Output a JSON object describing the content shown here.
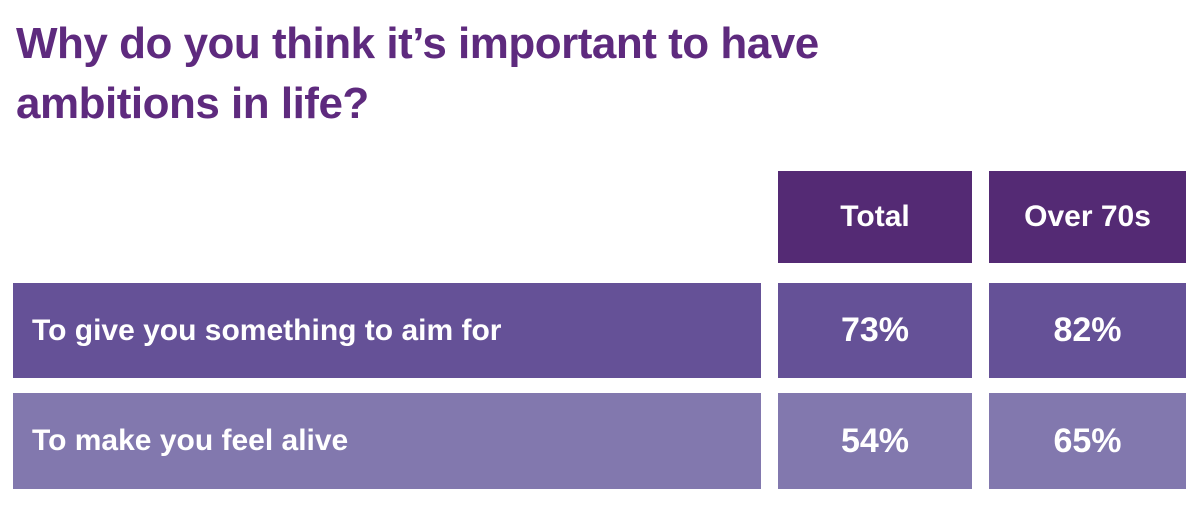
{
  "title": {
    "full": "Why do you think it’s important to have ambitions in life?",
    "lines": [
      "Why do you think it’s important to have",
      "ambitions in life?"
    ]
  },
  "table": {
    "columns": [
      {
        "label": "Total"
      },
      {
        "label": "Over 70s"
      }
    ],
    "rows": [
      {
        "label": "To give you something to aim for",
        "total": "73%",
        "over70s": "82%"
      },
      {
        "label": "To make you feel alive",
        "total": "54%",
        "over70s": "65%"
      }
    ]
  },
  "colors": {
    "background": "#ffffff",
    "title_text": "#5e2a7e",
    "header_bg": "#542a74",
    "row1_bg": "#655197",
    "row2_bg": "#8278ae",
    "cell_text": "#ffffff"
  },
  "chart_data": {
    "type": "table",
    "title": "Why do you think it’s important to have ambitions in life?",
    "columns": [
      "Total",
      "Over 70s"
    ],
    "rows": [
      "To give you something to aim for",
      "To make you feel alive"
    ],
    "values": [
      [
        73,
        82
      ],
      [
        54,
        65
      ]
    ],
    "unit": "%"
  }
}
